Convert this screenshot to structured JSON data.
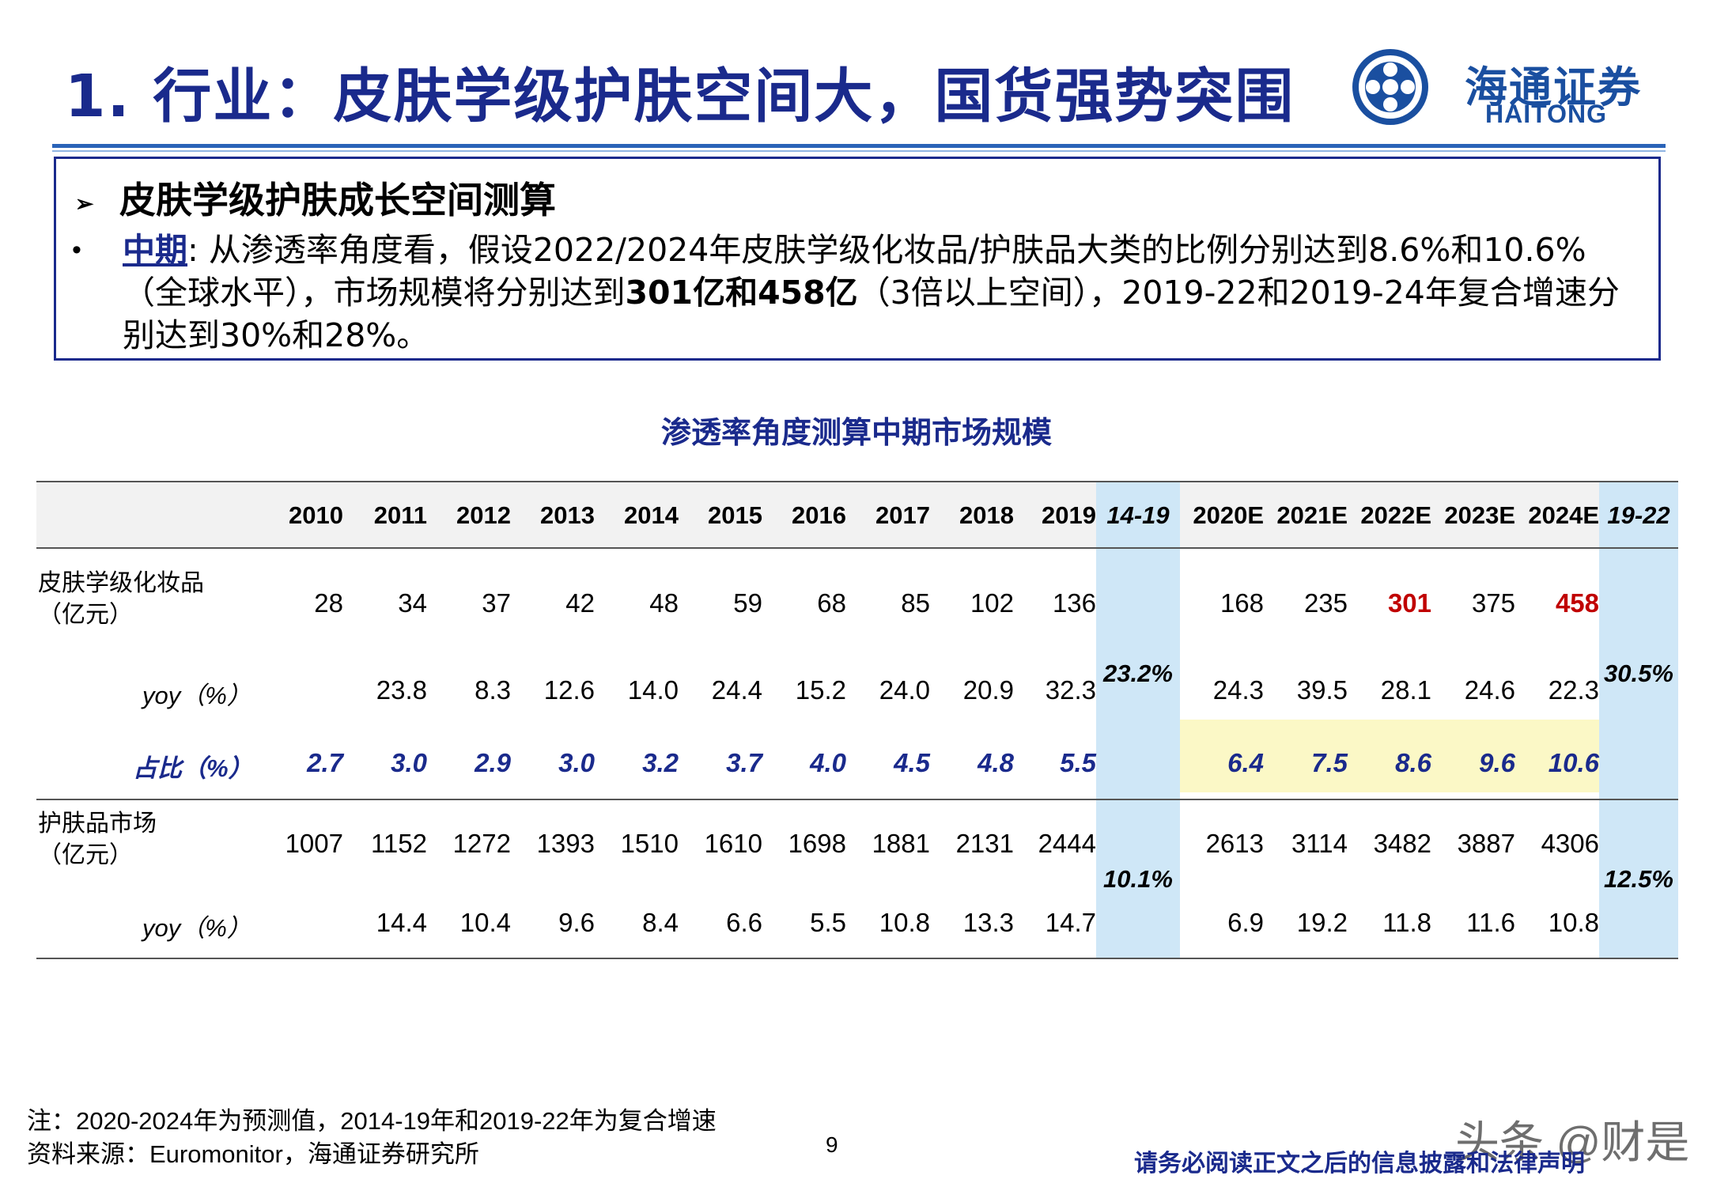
{
  "header": {
    "title": "1. 行业：皮肤学级护肤空间大，国货强势突围",
    "logo_cn": "海通证券",
    "logo_en": "HAITONG"
  },
  "summary": {
    "heading": "皮肤学级护肤成长空间测算",
    "keyword": "中期",
    "text_a": ": 从渗透率角度看，假设2022/2024年皮肤学级化妆品/护肤品大类的比例分别达到8.6%和10.6%（全球水平），市场规模将分别达到",
    "bold_a": "301亿和458亿",
    "text_b": "（3倍以上空间），2019-22和2019-24年复合增速分别达到30%和28%。"
  },
  "table": {
    "title": "渗透率角度测算中期市场规模",
    "years": [
      "2010",
      "2011",
      "2012",
      "2013",
      "2014",
      "2015",
      "2016",
      "2017",
      "2018",
      "2019"
    ],
    "cagr1_header": "14-19",
    "years_e": [
      "2020E",
      "2021E",
      "2022E",
      "2023E",
      "2024E"
    ],
    "cagr2_header": "19-22",
    "rows": {
      "derma_label_1": "皮肤学级化妆品",
      "derma_label_2": "（亿元）",
      "derma": [
        "28",
        "34",
        "37",
        "42",
        "48",
        "59",
        "68",
        "85",
        "102",
        "136"
      ],
      "derma_e": [
        "168",
        "235",
        "301",
        "375",
        "458"
      ],
      "derma_yoy_label": "yoy（%）",
      "derma_yoy": [
        "",
        "23.8",
        "8.3",
        "12.6",
        "14.0",
        "24.4",
        "15.2",
        "24.0",
        "20.9",
        "32.3"
      ],
      "derma_yoy_e": [
        "24.3",
        "39.5",
        "28.1",
        "24.6",
        "22.3"
      ],
      "derma_cagr1": "23.2%",
      "derma_cagr2": "30.5%",
      "share_label": "占比（%）",
      "share": [
        "2.7",
        "3.0",
        "2.9",
        "3.0",
        "3.2",
        "3.7",
        "4.0",
        "4.5",
        "4.8",
        "5.5"
      ],
      "share_e": [
        "6.4",
        "7.5",
        "8.6",
        "9.6",
        "10.6"
      ],
      "skin_label_1": "护肤品市场",
      "skin_label_2": "（亿元）",
      "skin": [
        "1007",
        "1152",
        "1272",
        "1393",
        "1510",
        "1610",
        "1698",
        "1881",
        "2131",
        "2444"
      ],
      "skin_e": [
        "2613",
        "3114",
        "3482",
        "3887",
        "4306"
      ],
      "skin_yoy_label": "yoy（%）",
      "skin_yoy": [
        "",
        "14.4",
        "10.4",
        "9.6",
        "8.4",
        "6.6",
        "5.5",
        "10.8",
        "13.3",
        "14.7"
      ],
      "skin_yoy_e": [
        "6.9",
        "19.2",
        "11.8",
        "11.6",
        "10.8"
      ],
      "skin_cagr1": "10.1%",
      "skin_cagr2": "12.5%"
    }
  },
  "footer": {
    "note": "注：2020-2024年为预测值，2014-19年和2019-22年为复合增速",
    "source": "资料来源：Euromonitor，海通证券研究所",
    "page": "9",
    "disclaimer": "请务必阅读正文之后的信息披露和法律声明",
    "watermark": "头条 @财是"
  },
  "colors": {
    "title": "#1a2a8c",
    "highlight_red": "#c00000",
    "cagr_bg": "#cfe7f7",
    "forecast_bg": "#fbf8c6"
  }
}
